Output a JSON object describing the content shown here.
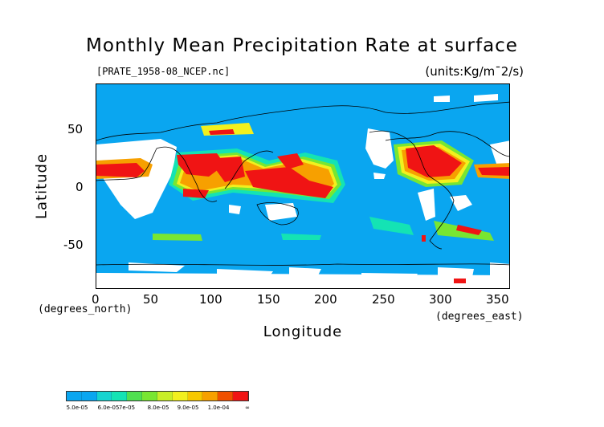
{
  "chart": {
    "title": "Monthly Mean Precipitation Rate at surface",
    "source_file": "[PRATE_1958-08_NCEP.nc]",
    "units": "(units:Kg/m¯2/s)",
    "xlabel": "Longitude",
    "ylabel": "Latitude",
    "x_unit": "(degrees_east)",
    "y_unit": "(degrees_north)"
  },
  "chart_data": {
    "type": "heatmap",
    "title": "Monthly Mean Precipitation Rate at surface",
    "xlabel": "Longitude",
    "ylabel": "Latitude",
    "xlim": [
      0,
      360
    ],
    "ylim": [
      -90,
      90
    ],
    "x_ticks": [
      "0",
      "50",
      "100",
      "150",
      "200",
      "250",
      "300",
      "350"
    ],
    "y_ticks": [
      "50",
      "0",
      "-50"
    ],
    "legend_labels": [
      "5.0e-05",
      "6.0e-05",
      "7e-05",
      "8.0e-05",
      "9.0e-05",
      "1.0e-04",
      "∞"
    ],
    "colors": {
      "background": "#0aa6f0",
      "low_mid": "#14e3b4",
      "mid": "#78e632",
      "high_mid": "#f2f01e",
      "high": "#f7a000",
      "max": "#f01414",
      "missing": "#ffffff"
    },
    "legend_colors": [
      "#0aa6f0",
      "#0aa6f0",
      "#16d4d0",
      "#14e3b4",
      "#50e050",
      "#78e632",
      "#c8ee28",
      "#f2f01e",
      "#f7c800",
      "#f7a000",
      "#f05000",
      "#f01414"
    ]
  }
}
